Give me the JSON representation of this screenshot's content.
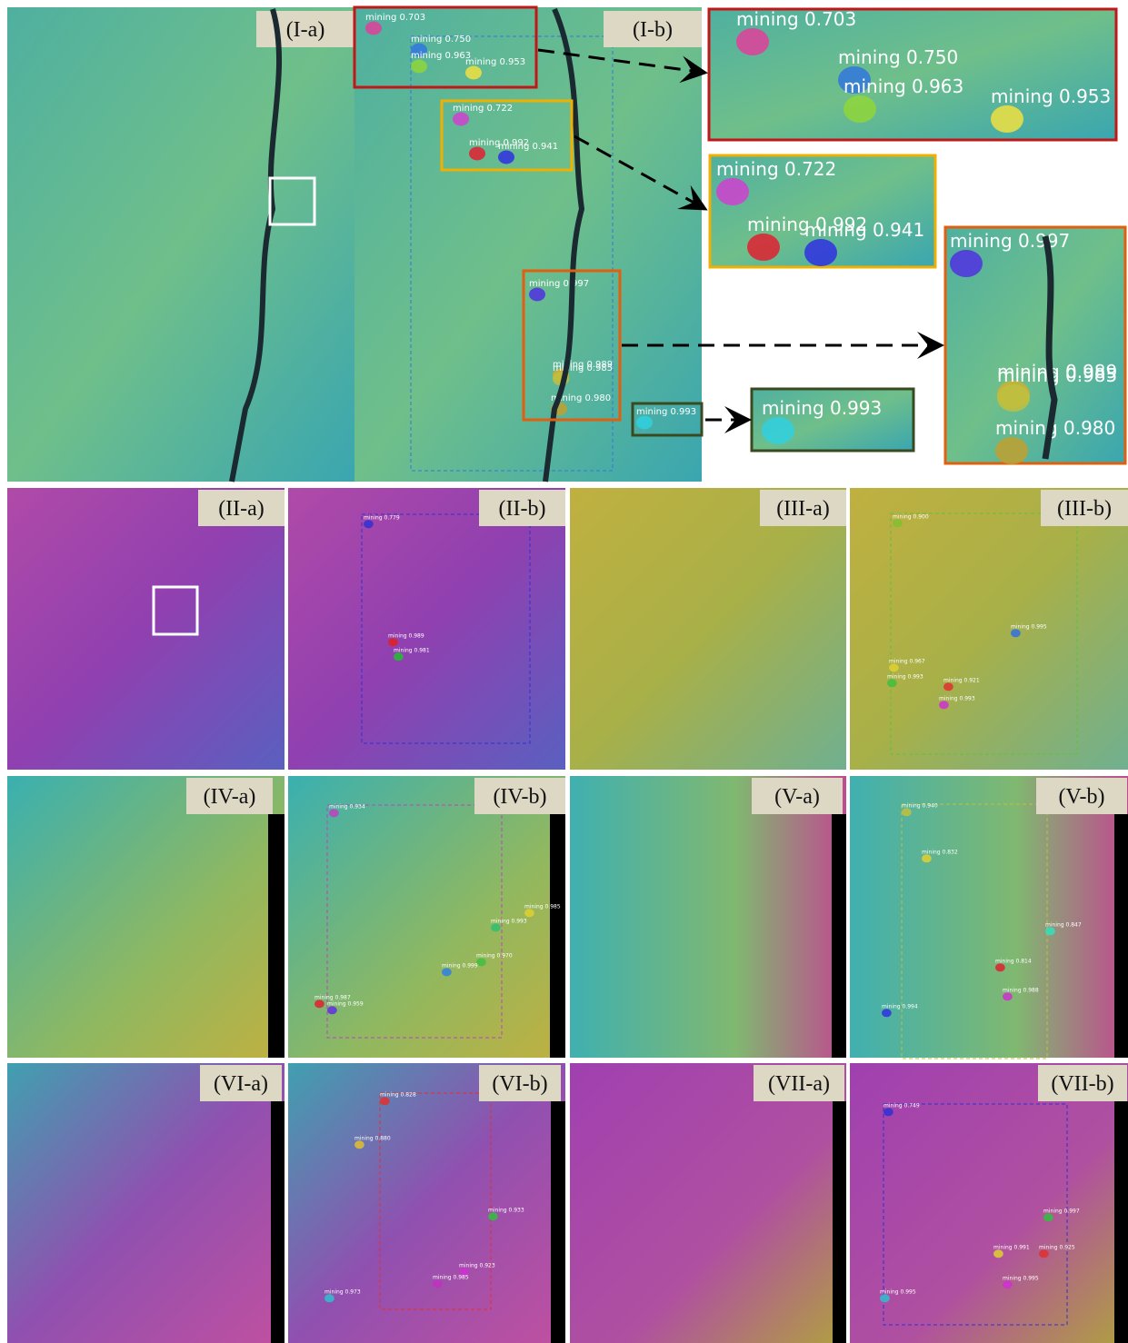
{
  "panels": [
    {
      "label": "(I-a)",
      "detections": []
    },
    {
      "label": "(I-b)",
      "detections": [
        {
          "text": "mining 0.703",
          "color": "#e0409a"
        },
        {
          "text": "mining 0.750",
          "color": "#3377dd"
        },
        {
          "text": "mining 0.963",
          "color": "#8fd63a"
        },
        {
          "text": "mining 0.953",
          "color": "#f0e040"
        },
        {
          "text": "mining 0.722",
          "color": "#d040d0"
        },
        {
          "text": "mining 0.992",
          "color": "#e02030"
        },
        {
          "text": "mining 0.941",
          "color": "#3030e0"
        },
        {
          "text": "mining 0.997",
          "color": "#5030e0"
        },
        {
          "text": "mining 0.989",
          "color": "#d0b030"
        },
        {
          "text": "mining 0.985",
          "color": "#c0c040"
        },
        {
          "text": "mining 0.980",
          "color": "#c0a030"
        },
        {
          "text": "mining 0.993",
          "color": "#30d0e0"
        }
      ]
    },
    {
      "label": "(II-a)",
      "detections": []
    },
    {
      "label": "(II-b)",
      "detections": [
        {
          "text": "mining 0.779",
          "color": "#3030d0"
        },
        {
          "text": "mining 0.989",
          "color": "#e02020"
        },
        {
          "text": "mining 0.981",
          "color": "#20c030"
        }
      ]
    },
    {
      "label": "(III-a)",
      "detections": []
    },
    {
      "label": "(III-b)",
      "detections": [
        {
          "text": "mining 0.900",
          "color": "#80c030"
        },
        {
          "text": "mining 0.995",
          "color": "#3070e0"
        },
        {
          "text": "mining 0.967",
          "color": "#e0d030"
        },
        {
          "text": "mining 0.993",
          "color": "#40c040"
        },
        {
          "text": "mining 0.921",
          "color": "#e03030"
        },
        {
          "text": "mining 0.993",
          "color": "#d030d0"
        }
      ]
    },
    {
      "label": "(IV-a)",
      "detections": []
    },
    {
      "label": "(IV-b)",
      "detections": [
        {
          "text": "mining 0.934",
          "color": "#c040c0"
        },
        {
          "text": "mining 0.985",
          "color": "#e0d030"
        },
        {
          "text": "mining 0.993",
          "color": "#30c070"
        },
        {
          "text": "mining 0.970",
          "color": "#40c040"
        },
        {
          "text": "mining 0.999",
          "color": "#3080e0"
        },
        {
          "text": "mining 0.987",
          "color": "#e02030"
        },
        {
          "text": "mining 0.959",
          "color": "#6030e0"
        }
      ]
    },
    {
      "label": "(V-a)",
      "detections": []
    },
    {
      "label": "(V-b)",
      "detections": [
        {
          "text": "mining 0.940",
          "color": "#c0c040"
        },
        {
          "text": "mining 0.832",
          "color": "#e0d030"
        },
        {
          "text": "mining 0.847",
          "color": "#30e0c0"
        },
        {
          "text": "mining 0.814",
          "color": "#e02030"
        },
        {
          "text": "mining 0.988",
          "color": "#d030d0"
        },
        {
          "text": "mining 0.994",
          "color": "#3030e0"
        }
      ]
    },
    {
      "label": "(VI-a)",
      "detections": []
    },
    {
      "label": "(VI-b)",
      "detections": [
        {
          "text": "mining 0.828",
          "color": "#e03030"
        },
        {
          "text": "mining 0.880",
          "color": "#e0c030"
        },
        {
          "text": "mining 0.933",
          "color": "#30c040"
        },
        {
          "text": "mining 0.923",
          "color": "#d030d0"
        },
        {
          "text": "mining 0.985",
          "color": "#c030c0"
        },
        {
          "text": "mining 0.973",
          "color": "#30c0d0"
        }
      ]
    },
    {
      "label": "(VII-a)",
      "detections": []
    },
    {
      "label": "(VII-b)",
      "detections": [
        {
          "text": "mining 0.749",
          "color": "#3030d0"
        },
        {
          "text": "mining 0.997",
          "color": "#30c040"
        },
        {
          "text": "mining 0.991",
          "color": "#e0d030"
        },
        {
          "text": "mining 0.925",
          "color": "#e03030"
        },
        {
          "text": "mining 0.995",
          "color": "#d030d0"
        },
        {
          "text": "mining 0.995",
          "color": "#30c0d0"
        }
      ]
    }
  ],
  "insets": [
    {
      "detections": [
        {
          "text": "mining 0.703",
          "color": "#e0409a"
        },
        {
          "text": "mining 0.750",
          "color": "#3377dd"
        },
        {
          "text": "mining 0.963",
          "color": "#8fd63a"
        },
        {
          "text": "mining 0.953",
          "color": "#f0e040"
        }
      ]
    },
    {
      "detections": [
        {
          "text": "mining 0.722",
          "color": "#d040d0"
        },
        {
          "text": "mining 0.992",
          "color": "#e02030"
        },
        {
          "text": "mining 0.941",
          "color": "#3030e0"
        }
      ]
    },
    {
      "detections": [
        {
          "text": "mining 0.997",
          "color": "#5030e0"
        },
        {
          "text": "mining 0.989",
          "color": "#d0b030"
        },
        {
          "text": "mining 0.985",
          "color": "#c0c040"
        },
        {
          "text": "mining 0.980",
          "color": "#c0a030"
        }
      ]
    },
    {
      "detections": [
        {
          "text": "mining 0.993",
          "color": "#30d0e0"
        }
      ]
    }
  ]
}
